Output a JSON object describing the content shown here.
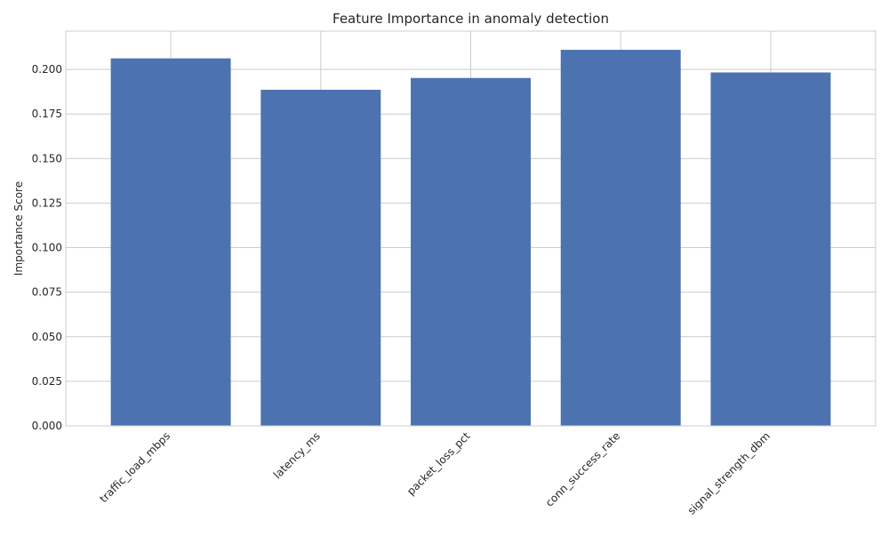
{
  "chart_data": {
    "type": "bar",
    "title": "Feature Importance in anomaly detection",
    "xlabel": "",
    "ylabel": "Importance Score",
    "categories": [
      "traffic_load_mbps",
      "latency_ms",
      "packet_loss_pct",
      "conn_success_rate",
      "signal_strength_dbm"
    ],
    "values": [
      0.2062,
      0.1886,
      0.1952,
      0.211,
      0.1983
    ],
    "ylim": [
      0,
      0.2215
    ],
    "yticks": [
      0.0,
      0.025,
      0.05,
      0.075,
      0.1,
      0.125,
      0.15,
      0.175,
      0.2
    ],
    "ytick_labels": [
      "0.000",
      "0.025",
      "0.050",
      "0.075",
      "0.100",
      "0.125",
      "0.150",
      "0.175",
      "0.200"
    ],
    "grid": true,
    "bar_color": "#4c72b0",
    "grid_color": "#cccccc",
    "spine_color": "#cccccc"
  }
}
